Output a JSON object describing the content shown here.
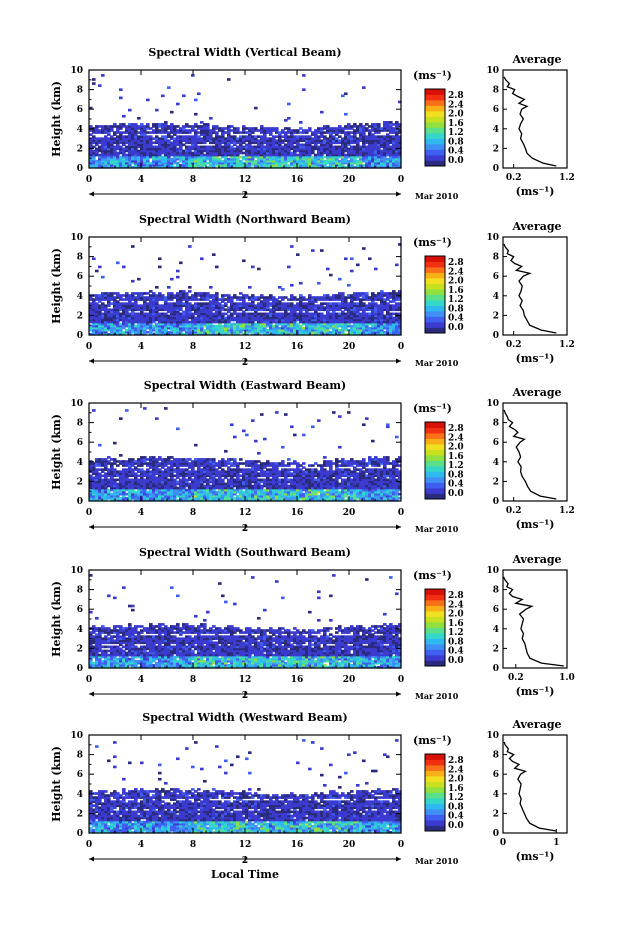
{
  "xlabel": "Local Time",
  "ylabel": "Height (km)",
  "unit_label": "(ms⁻¹)",
  "avg_title": "Average",
  "date_day": "2",
  "date_label": "Mar 2010",
  "x_ticks": [
    "0",
    "4",
    "8",
    "12",
    "16",
    "20",
    "0"
  ],
  "y_ticks": [
    "0",
    "2",
    "4",
    "6",
    "8",
    "10"
  ],
  "colorbar_ticks": [
    "0.0",
    "0.4",
    "0.8",
    "1.2",
    "1.6",
    "2.0",
    "2.4",
    "2.8"
  ],
  "colors": {
    "colormap": [
      "#2a2a7e",
      "#3b3bd0",
      "#3f5ff0",
      "#3f8ff5",
      "#30b8f0",
      "#35d8c8",
      "#5ae08a",
      "#8fe040",
      "#c8e020",
      "#f0e020",
      "#f8b018",
      "#f87018",
      "#f03010",
      "#d81008"
    ]
  },
  "chart_data": [
    {
      "type": "heatmap",
      "title": "Spectral Width (Vertical Beam)",
      "x_range": [
        0,
        24
      ],
      "y_range": [
        0,
        10
      ],
      "color_range": [
        0.0,
        2.8
      ],
      "avg_x_ticks": [
        "0.2",
        "1.2"
      ],
      "avg_xlim": [
        0.0,
        1.2
      ],
      "average_profile": {
        "height_km": [
          0.2,
          0.5,
          1.0,
          1.5,
          2.0,
          2.5,
          3.0,
          3.5,
          4.0,
          4.5,
          5.0,
          5.5,
          6.0,
          6.3,
          6.6,
          7.0,
          7.3,
          7.6,
          8.0,
          8.3,
          8.6,
          9.0,
          9.3
        ],
        "value": [
          1.0,
          0.75,
          0.55,
          0.45,
          0.42,
          0.38,
          0.33,
          0.35,
          0.3,
          0.33,
          0.38,
          0.32,
          0.35,
          0.45,
          0.3,
          0.4,
          0.28,
          0.18,
          0.22,
          0.08,
          0.12,
          0.05,
          0.02
        ]
      }
    },
    {
      "type": "heatmap",
      "title": "Spectral Width (Northward Beam)",
      "x_range": [
        0,
        24
      ],
      "y_range": [
        0,
        10
      ],
      "color_range": [
        0.0,
        2.8
      ],
      "avg_x_ticks": [
        "0.2",
        "1.2"
      ],
      "avg_xlim": [
        0.0,
        1.2
      ],
      "average_profile": {
        "height_km": [
          0.2,
          0.5,
          1.0,
          1.5,
          2.0,
          2.5,
          3.0,
          3.5,
          4.0,
          4.5,
          5.0,
          5.5,
          6.0,
          6.3,
          6.6,
          7.0,
          7.3,
          7.6,
          8.0,
          8.3,
          8.6,
          9.0,
          9.3
        ],
        "value": [
          1.0,
          0.72,
          0.5,
          0.45,
          0.4,
          0.38,
          0.32,
          0.36,
          0.3,
          0.34,
          0.36,
          0.3,
          0.38,
          0.5,
          0.25,
          0.35,
          0.22,
          0.15,
          0.2,
          0.08,
          0.1,
          0.04,
          0.02
        ]
      }
    },
    {
      "type": "heatmap",
      "title": "Spectral Width (Eastward Beam)",
      "x_range": [
        0,
        24
      ],
      "y_range": [
        0,
        10
      ],
      "color_range": [
        0.0,
        2.8
      ],
      "avg_x_ticks": [
        "0.2",
        "1.2"
      ],
      "avg_xlim": [
        0.0,
        1.2
      ],
      "average_profile": {
        "height_km": [
          0.2,
          0.5,
          1.0,
          1.5,
          2.0,
          2.5,
          3.0,
          3.5,
          4.0,
          4.5,
          5.0,
          5.5,
          6.0,
          6.3,
          6.6,
          7.0,
          7.3,
          7.6,
          8.0,
          8.3,
          8.6,
          9.0,
          9.3
        ],
        "value": [
          1.0,
          0.7,
          0.52,
          0.46,
          0.42,
          0.36,
          0.33,
          0.34,
          0.28,
          0.33,
          0.3,
          0.25,
          0.32,
          0.4,
          0.2,
          0.28,
          0.22,
          0.12,
          0.18,
          0.1,
          0.08,
          0.04,
          0.02
        ]
      }
    },
    {
      "type": "heatmap",
      "title": "Spectral Width (Southward Beam)",
      "x_range": [
        0,
        24
      ],
      "y_range": [
        0,
        10
      ],
      "color_range": [
        0.0,
        2.8
      ],
      "avg_x_ticks": [
        "0.2",
        "1.0"
      ],
      "avg_xlim": [
        0.0,
        1.0
      ],
      "average_profile": {
        "height_km": [
          0.2,
          0.5,
          1.0,
          1.5,
          2.0,
          2.5,
          3.0,
          3.5,
          4.0,
          4.5,
          5.0,
          5.5,
          6.0,
          6.3,
          6.6,
          7.0,
          7.3,
          7.6,
          8.0,
          8.3,
          8.6,
          9.0,
          9.3
        ],
        "value": [
          0.95,
          0.6,
          0.42,
          0.38,
          0.36,
          0.34,
          0.3,
          0.32,
          0.28,
          0.3,
          0.32,
          0.26,
          0.36,
          0.45,
          0.2,
          0.3,
          0.15,
          0.1,
          0.15,
          0.06,
          0.08,
          0.03,
          0.01
        ]
      }
    },
    {
      "type": "heatmap",
      "title": "Spectral Width (Westward Beam)",
      "x_range": [
        0,
        24
      ],
      "y_range": [
        0,
        10
      ],
      "color_range": [
        0.0,
        2.8
      ],
      "avg_x_ticks": [
        "0",
        "1"
      ],
      "avg_xlim": [
        0.0,
        1.2
      ],
      "average_profile": {
        "height_km": [
          0.2,
          0.5,
          1.0,
          1.5,
          2.0,
          2.5,
          3.0,
          3.5,
          4.0,
          4.5,
          5.0,
          5.5,
          6.0,
          6.3,
          6.6,
          7.0,
          7.3,
          7.6,
          8.0,
          8.3,
          8.6,
          9.0,
          9.3
        ],
        "value": [
          1.0,
          0.68,
          0.5,
          0.44,
          0.4,
          0.36,
          0.32,
          0.34,
          0.3,
          0.32,
          0.34,
          0.28,
          0.33,
          0.42,
          0.22,
          0.3,
          0.18,
          0.12,
          0.2,
          0.08,
          0.1,
          0.04,
          0.02
        ]
      }
    }
  ]
}
